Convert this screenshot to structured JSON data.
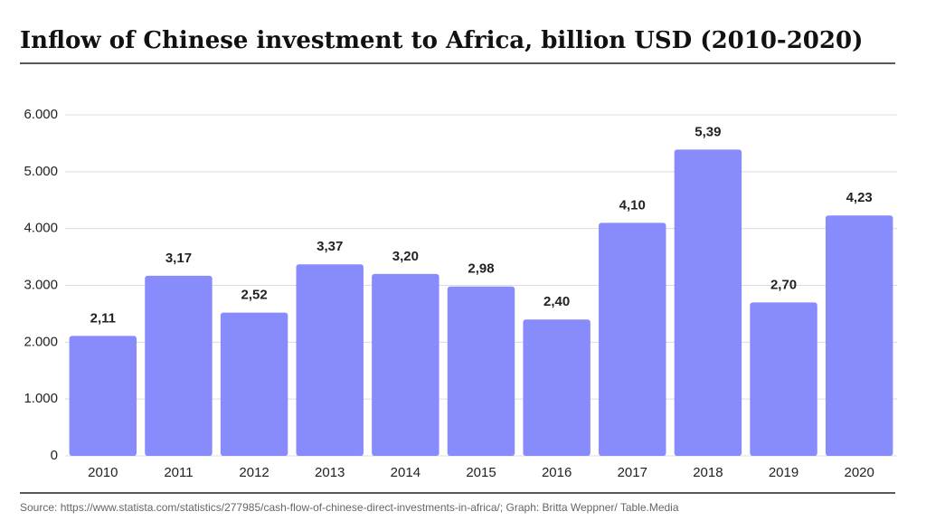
{
  "chart_data": {
    "type": "bar",
    "title": "Inflow of Chinese investment to Africa, billion USD (2010-2020)",
    "source": "Source: https://www.statista.com/statistics/277985/cash-flow-of-chinese-direct-investments-in-africa/; Graph: Britta Weppner/ Table.Media",
    "categories": [
      "2010",
      "2011",
      "2012",
      "2013",
      "2014",
      "2015",
      "2016",
      "2017",
      "2018",
      "2019",
      "2020"
    ],
    "values": [
      2110,
      3170,
      2520,
      3370,
      3200,
      2980,
      2400,
      4100,
      5390,
      2700,
      4230
    ],
    "value_labels": [
      "2,11",
      "3,17",
      "2,52",
      "3,37",
      "3,20",
      "2,98",
      "2,40",
      "4,10",
      "5,39",
      "2,70",
      "4,23"
    ],
    "color": "#878bfb",
    "ylim": [
      0,
      6000
    ],
    "yticks": [
      0,
      {
        "value": 1000,
        "label": "1.000"
      },
      {
        "value": 2000,
        "label": "2.000"
      },
      {
        "value": 3000,
        "label": "3.000"
      },
      {
        "value": 4000,
        "label": "4.000"
      },
      {
        "value": 5000,
        "label": "5.000"
      },
      {
        "value": 6000,
        "label": "6.000"
      }
    ],
    "grid": true
  }
}
